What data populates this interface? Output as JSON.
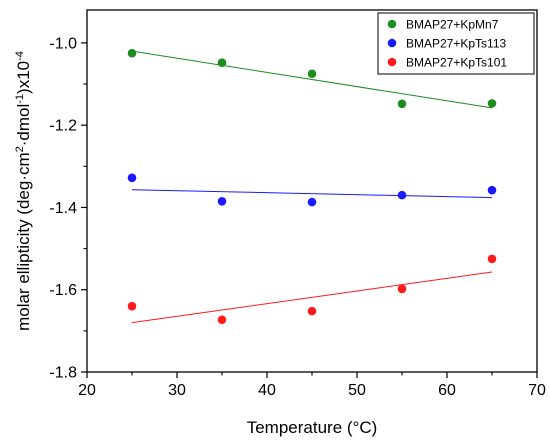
{
  "chart_data": {
    "type": "scatter",
    "xlabel": "Temperature (°C)",
    "ylabel_parts": [
      {
        "text": "molar ellipticity (deg·cm",
        "sup": false
      },
      {
        "text": "2",
        "sup": true
      },
      {
        "text": "·dmol",
        "sup": false
      },
      {
        "text": "-1",
        "sup": true
      },
      {
        "text": ")x10",
        "sup": false
      },
      {
        "text": "-4",
        "sup": true
      }
    ],
    "xlim": [
      20,
      70
    ],
    "ylim": [
      -1.8,
      -0.92
    ],
    "x_ticks": [
      20,
      30,
      40,
      50,
      60,
      70
    ],
    "x_tick_labels": [
      "20",
      "30",
      "40",
      "50",
      "60",
      "70"
    ],
    "y_ticks": [
      -1.8,
      -1.6,
      -1.4,
      -1.2,
      -1.0
    ],
    "y_tick_labels": [
      "-1.8",
      "-1.6",
      "-1.4",
      "-1.2",
      "-1.0"
    ],
    "legend_position": "top-right",
    "grid": false,
    "series": [
      {
        "name": "BMAP27+KpMn7",
        "color": "#1e8c1e",
        "x": [
          25,
          35,
          45,
          55,
          65
        ],
        "y": [
          -1.025,
          -1.048,
          -1.075,
          -1.148,
          -1.147
        ],
        "fit": {
          "x": [
            25,
            65
          ],
          "y": [
            -1.02,
            -1.158
          ]
        }
      },
      {
        "name": "BMAP27+KpTs113",
        "color": "#1a1aff",
        "x": [
          25,
          35,
          45,
          55,
          65
        ],
        "y": [
          -1.328,
          -1.385,
          -1.387,
          -1.37,
          -1.358
        ],
        "fit": {
          "x": [
            25,
            65
          ],
          "y": [
            -1.357,
            -1.376
          ]
        }
      },
      {
        "name": "BMAP27+KpTs101",
        "color": "#ff1a1a",
        "x": [
          25,
          35,
          45,
          55,
          65
        ],
        "y": [
          -1.64,
          -1.673,
          -1.652,
          -1.598,
          -1.525
        ],
        "fit": {
          "x": [
            25,
            65
          ],
          "y": [
            -1.68,
            -1.557
          ]
        }
      }
    ]
  }
}
